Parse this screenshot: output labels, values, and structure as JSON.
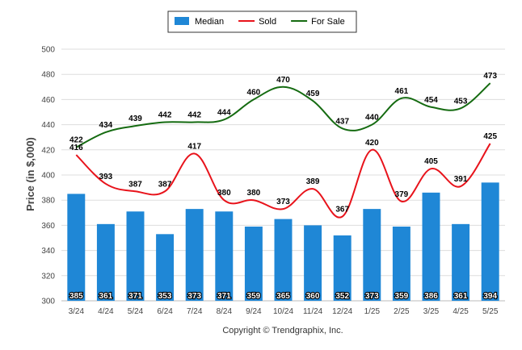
{
  "chart_data": {
    "type": "bar",
    "categories": [
      "3/24",
      "4/24",
      "5/24",
      "6/24",
      "7/24",
      "8/24",
      "9/24",
      "10/24",
      "11/24",
      "12/24",
      "1/25",
      "2/25",
      "3/25",
      "4/25",
      "5/25"
    ],
    "series": [
      {
        "name": "Median",
        "type": "bar",
        "color": "#1f87d6",
        "values": [
          385,
          361,
          371,
          353,
          373,
          371,
          359,
          365,
          360,
          352,
          373,
          359,
          386,
          361,
          394
        ]
      },
      {
        "name": "Sold",
        "type": "line",
        "color": "#e8131b",
        "values": [
          416,
          393,
          387,
          387,
          417,
          380,
          380,
          373,
          389,
          367,
          420,
          379,
          405,
          391,
          425
        ]
      },
      {
        "name": "For Sale",
        "type": "line",
        "color": "#156b11",
        "values": [
          422,
          434,
          439,
          442,
          442,
          444,
          460,
          470,
          459,
          437,
          440,
          461,
          454,
          453,
          473
        ]
      }
    ],
    "ylabel": "Price (in $,000)",
    "xlabel": "",
    "ylim": [
      300,
      500
    ],
    "yticks": [
      300,
      320,
      340,
      360,
      380,
      400,
      420,
      440,
      460,
      480,
      500
    ],
    "grid": true,
    "legend": "top-center",
    "footer": "Copyright © Trendgraphix, Inc."
  }
}
